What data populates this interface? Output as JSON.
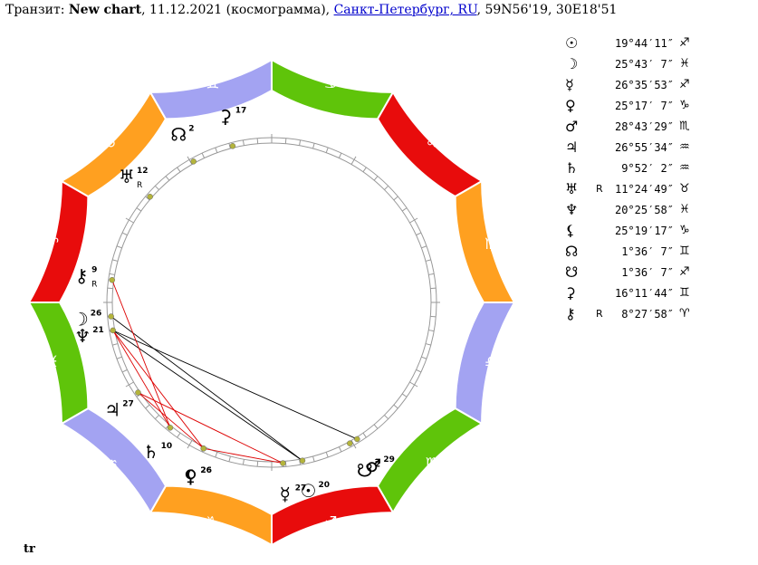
{
  "header": {
    "prefix": "Транзит: ",
    "chart_name": "New chart",
    "date_type": ", 11.12.2021 (космограмма), ",
    "location": "Санкт-Петербург, RU",
    "coords": ", 59N56'19, 30E18'51"
  },
  "colors": {
    "fire": "#e80c0c",
    "earth": "#5fc40a",
    "air": "#a3a3f2",
    "water": "#ffa020",
    "aspect_red": "#dd0000",
    "aspect_black": "#000000",
    "dot": "#b4b43c"
  },
  "zodiac": [
    {
      "glyph": "♈",
      "element": "fire"
    },
    {
      "glyph": "♉",
      "element": "water"
    },
    {
      "glyph": "♊",
      "element": "air"
    },
    {
      "glyph": "♋",
      "element": "earth"
    },
    {
      "glyph": "♌",
      "element": "fire"
    },
    {
      "glyph": "♍",
      "element": "water"
    },
    {
      "glyph": "♎",
      "element": "air"
    },
    {
      "glyph": "♏",
      "element": "earth"
    },
    {
      "glyph": "♐",
      "element": "fire"
    },
    {
      "glyph": "♑",
      "element": "water"
    },
    {
      "glyph": "♒",
      "element": "air"
    },
    {
      "glyph": "♓",
      "element": "earth"
    }
  ],
  "planets": [
    {
      "name": "Sun",
      "glyph": "☉",
      "pos": "19°44′11″",
      "sign": "♐",
      "retro": "",
      "deg": 20
    },
    {
      "name": "Moon",
      "glyph": "☽",
      "pos": "25°43′ 7″",
      "sign": "♓",
      "retro": "",
      "deg": 26
    },
    {
      "name": "Mercury",
      "glyph": "☿",
      "pos": "26°35′53″",
      "sign": "♐",
      "retro": "",
      "deg": 27
    },
    {
      "name": "Venus",
      "glyph": "♀",
      "pos": "25°17′ 7″",
      "sign": "♑",
      "retro": "",
      "deg": 26
    },
    {
      "name": "Mars",
      "glyph": "♂",
      "pos": "28°43′29″",
      "sign": "♏",
      "retro": "",
      "deg": 29
    },
    {
      "name": "Jupiter",
      "glyph": "♃",
      "pos": "26°55′34″",
      "sign": "♒",
      "retro": "",
      "deg": 27
    },
    {
      "name": "Saturn",
      "glyph": "♄",
      "pos": "9°52′ 2″",
      "sign": "♒",
      "retro": "",
      "deg": 10
    },
    {
      "name": "Uranus",
      "glyph": "♅",
      "pos": "11°24′49″",
      "sign": "♉",
      "retro": "R",
      "deg": 12
    },
    {
      "name": "Neptune",
      "glyph": "♆",
      "pos": "20°25′58″",
      "sign": "♓",
      "retro": "",
      "deg": 21
    },
    {
      "name": "Lilith",
      "glyph": "⚸",
      "pos": "25°19′17″",
      "sign": "♑",
      "retro": "",
      "deg": 26
    },
    {
      "name": "North Node",
      "glyph": "☊",
      "pos": "1°36′ 7″",
      "sign": "♊",
      "retro": "",
      "deg": 2
    },
    {
      "name": "South Node",
      "glyph": "☋",
      "pos": "1°36′ 7″",
      "sign": "♐",
      "retro": "",
      "deg": 2
    },
    {
      "name": "Selena",
      "glyph": "⚳",
      "pos": "16°11′44″",
      "sign": "♊",
      "retro": "",
      "deg": 17
    },
    {
      "name": "Chiron",
      "glyph": "⚷",
      "pos": "8°27′58″",
      "sign": "♈",
      "retro": "R",
      "deg": 9
    }
  ],
  "footer": "tr"
}
